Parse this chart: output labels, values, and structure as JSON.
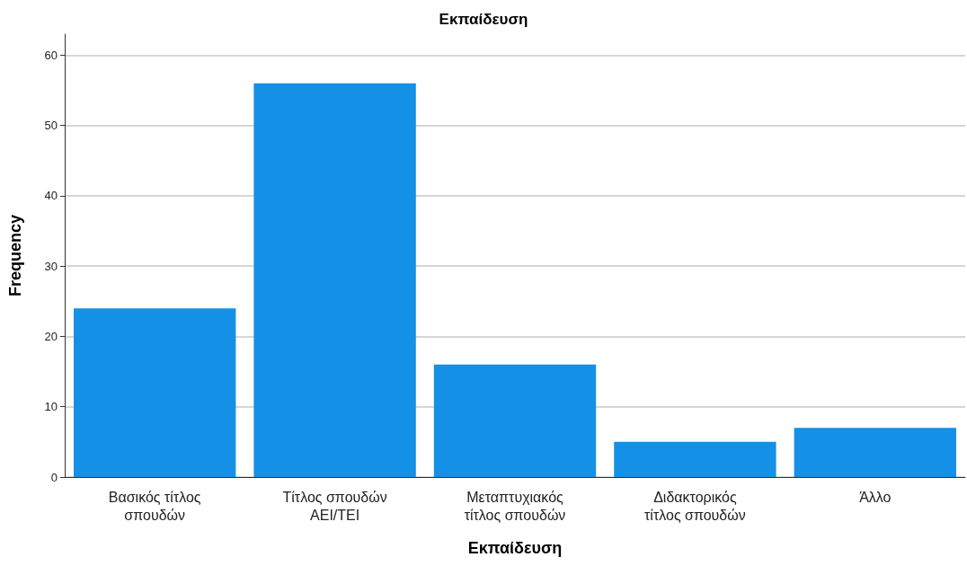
{
  "chart_data": {
    "type": "bar",
    "title": "Εκπαίδευση",
    "xlabel": "Εκπαίδευση",
    "ylabel": "Frequency",
    "categories": [
      "Βασικός τίτλος σπουδών",
      "Τίτλος σπουδών ΑΕΙ/ΤΕΙ",
      "Μεταπτυχιακός τίτλος σπουδών",
      "Διδακτορικός τίτλος σπουδών",
      "Άλλο"
    ],
    "values": [
      24,
      56,
      16,
      5,
      7
    ],
    "color": "#1490e6",
    "ylim": [
      0,
      63
    ],
    "yticks": [
      0,
      10,
      20,
      30,
      40,
      50,
      60
    ],
    "grid": "y"
  }
}
